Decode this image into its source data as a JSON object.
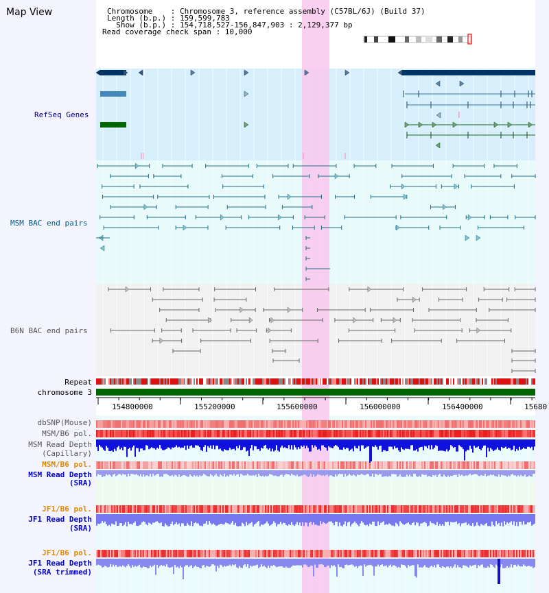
{
  "header": {
    "map_view": "Map View",
    "chromosome_line": "Chromosome    : Chromosome 3, reference assembly (C57BL/6J) (Build 37)",
    "length_line": "Length (b.p.) : 159,599,783",
    "show_line": "  Show (b.p.) : 154,718,527-156,847,903 : 2,129,377 bp",
    "coverage_line": "Read coverage check span : 10,000"
  },
  "tracks": {
    "refseq": "RefSeq Genes",
    "msm_bac": "MSM BAC end pairs",
    "b6n_bac": "B6N BAC end pairs",
    "repeat": "Repeat",
    "chromosome": "chromosome 3",
    "dbsnp": "dbSNP(Mouse)",
    "msm_b6_pol": "MSM/B6 pol.",
    "msm_depth_cap_1": "MSM Read Depth",
    "msm_depth_cap_2": "(Capillary)",
    "msm_b6_pol_sra": "MSM/B6 pol.",
    "msm_depth_sra_1": "MSM Read Depth",
    "msm_depth_sra_2": "(SRA)",
    "jf1_b6_pol": "JF1/B6 pol.",
    "jf1_depth_sra_1": "JF1 Read Depth",
    "jf1_depth_sra_2": "(SRA)",
    "jf1_b6_pol_trim": "JF1/B6 pol.",
    "jf1_depth_trim_1": "JF1 Read Depth",
    "jf1_depth_trim_2": "(SRA trimmed)"
  },
  "ruler": {
    "ticks": [
      "154800000",
      "155200000",
      "155600000",
      "156000000",
      "156400000",
      "15680"
    ]
  },
  "colors": {
    "refseq_label": "#00008b",
    "msm_label": "#005a82",
    "b6n_label": "#555555",
    "orange_label": "#e08a00",
    "blue_label": "#0000cc",
    "highlight": "#f9c8ef",
    "chromosome_bar": "#006400"
  }
}
